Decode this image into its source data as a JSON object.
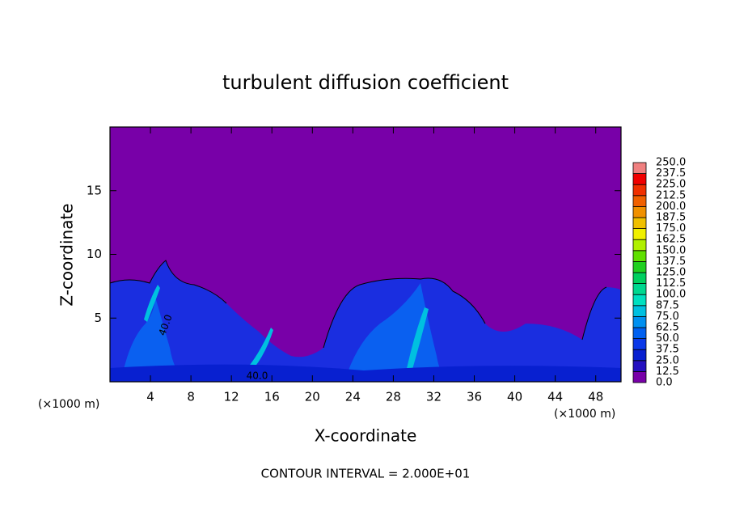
{
  "chart_data": {
    "type": "contour",
    "title": "turbulent diffusion coefficient",
    "xlabel": "X-coordinate",
    "ylabel": "Z-coordinate",
    "x_unit_left": "(×1000 m)",
    "x_unit_right": "(×1000 m)",
    "annotation": "CONTOUR INTERVAL = 2.000E+01",
    "contour_labels": [
      {
        "value": 40,
        "label": "40.0"
      },
      {
        "value": 40,
        "label": "40.0"
      }
    ],
    "xlim": [
      0,
      50.5
    ],
    "xticks": [
      4,
      8,
      12,
      16,
      20,
      24,
      28,
      32,
      36,
      40,
      44,
      48
    ],
    "ylim": [
      0,
      20
    ],
    "yticks": [
      5,
      10,
      15
    ],
    "colorbar": {
      "levels": [
        {
          "value": 0,
          "label": "0.0"
        },
        {
          "value": 12.5,
          "label": "12.5"
        },
        {
          "value": 25,
          "label": "25.0"
        },
        {
          "value": 37.5,
          "label": "37.5"
        },
        {
          "value": 50,
          "label": "50.0"
        },
        {
          "value": 62.5,
          "label": "62.5"
        },
        {
          "value": 75,
          "label": "75.0"
        },
        {
          "value": 87.5,
          "label": "87.5"
        },
        {
          "value": 100,
          "label": "100.0"
        },
        {
          "value": 112.5,
          "label": "112.5"
        },
        {
          "value": 125,
          "label": "125.0"
        },
        {
          "value": 137.5,
          "label": "137.5"
        },
        {
          "value": 150,
          "label": "150.0"
        },
        {
          "value": 162.5,
          "label": "162.5"
        },
        {
          "value": 175,
          "label": "175.0"
        },
        {
          "value": 187.5,
          "label": "187.5"
        },
        {
          "value": 200,
          "label": "200.0"
        },
        {
          "value": 212.5,
          "label": "212.5"
        },
        {
          "value": 225,
          "label": "225.0"
        },
        {
          "value": 237.5,
          "label": "237.5"
        },
        {
          "value": 250,
          "label": "250.0"
        }
      ],
      "colors": [
        "#7800a8",
        "#2410c0",
        "#0820d0",
        "#0a38e8",
        "#0060f0",
        "#0090f0",
        "#00c0e0",
        "#00e0c0",
        "#00d890",
        "#00d060",
        "#20d020",
        "#60e000",
        "#b0f000",
        "#f0f000",
        "#f0c000",
        "#f09000",
        "#f06000",
        "#f03000",
        "#f00000",
        "#f08080"
      ]
    }
  }
}
